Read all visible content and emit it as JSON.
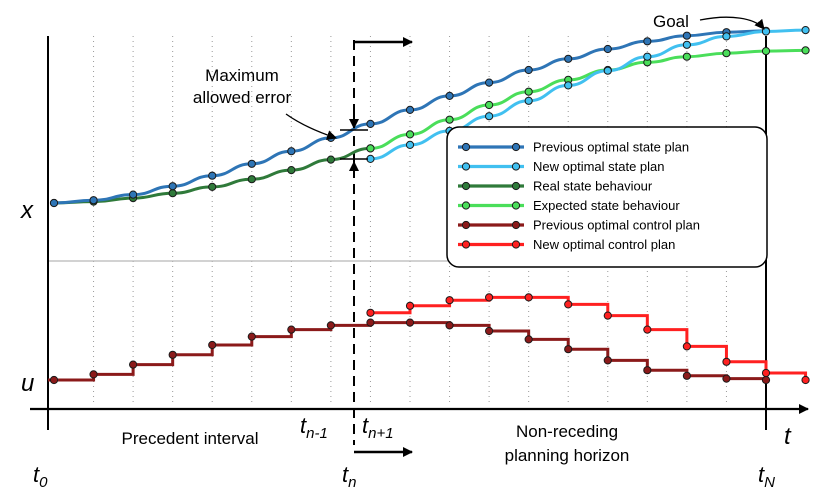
{
  "labels": {
    "goal": "Goal",
    "max_error_line1": "Maximum",
    "max_error_line2": "allowed error",
    "x_axis": "t",
    "y_state": "x",
    "y_control": "u",
    "precedent": "Precedent interval",
    "non_receding_line1": "Non-receding",
    "non_receding_line2": "planning  horizon"
  },
  "ticks": {
    "t0": {
      "base": "t",
      "sub": "0"
    },
    "tn_minus": {
      "base": "t",
      "sub": "n-1"
    },
    "tn_plus": {
      "base": "t",
      "sub": "n+1"
    },
    "tn": {
      "base": "t",
      "sub": "n"
    },
    "tN": {
      "base": "t",
      "sub": "N"
    }
  },
  "legend": [
    {
      "label": "Previous optimal state plan",
      "color": "#2e75b6",
      "marker": "#2e75b6"
    },
    {
      "label": "New optimal state plan",
      "color": "#41c0f0",
      "marker": "#41c0f0"
    },
    {
      "label": "Real state behaviour",
      "color": "#2f7a3a",
      "marker": "#2f7a3a"
    },
    {
      "label": "Expected state behaviour",
      "color": "#4ade5a",
      "marker": "#4ade5a"
    },
    {
      "label": "Previous optimal control plan",
      "color": "#8b1a1a",
      "marker": "#8b1a1a"
    },
    {
      "label": "New optimal control plan",
      "color": "#ff2020",
      "marker": "#ff2020"
    }
  ],
  "chart_data": {
    "type": "line",
    "time_steps": 19,
    "current_step": 8,
    "series": [
      {
        "key": "prev_state",
        "values": [
          0,
          0.4,
          1.2,
          2.4,
          3.9,
          5.6,
          7.4,
          9.3,
          11.3,
          13.3,
          15.3,
          17.2,
          19.0,
          20.6,
          22.0,
          23.1,
          23.9,
          24.4,
          24.6
        ]
      },
      {
        "key": "new_state",
        "values": [
          6.3,
          8.3,
          10.3,
          12.4,
          14.6,
          16.8,
          18.9,
          20.9,
          22.6,
          23.8,
          24.5,
          24.7
        ],
        "start": 8
      },
      {
        "key": "real_state",
        "values": [
          0,
          0.2,
          0.7,
          1.4,
          2.3,
          3.4,
          4.7,
          6.2,
          7.8
        ]
      },
      {
        "key": "expected_state",
        "values": [
          7.8,
          9.8,
          11.9,
          14.0,
          15.9,
          17.6,
          19.0,
          20.1,
          20.9,
          21.4,
          21.7,
          21.8
        ],
        "start": 8
      },
      {
        "key": "prev_control",
        "values": [
          0,
          0.4,
          1.1,
          1.8,
          2.5,
          3.1,
          3.6,
          3.9,
          4.1,
          4.1,
          3.9,
          3.5,
          2.9,
          2.2,
          1.4,
          0.7,
          0.3,
          0.1,
          0
        ]
      },
      {
        "key": "new_control",
        "values": [
          4.8,
          5.3,
          5.7,
          5.9,
          5.9,
          5.4,
          4.6,
          3.6,
          2.4,
          1.3,
          0.5,
          0
        ],
        "start": 8
      }
    ]
  }
}
